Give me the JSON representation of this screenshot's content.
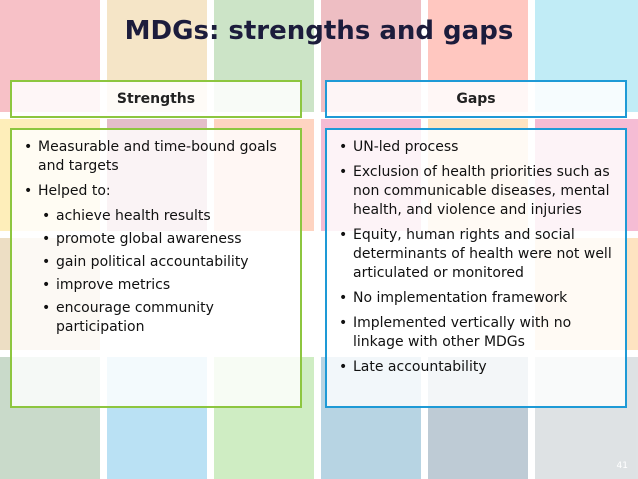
{
  "title": "MDGs: strengths and gaps",
  "columns": [
    {
      "header": "Strengths",
      "items": [
        {
          "text": "Measurable and time-bound goals and targets"
        },
        {
          "text": "Helped to:",
          "subitems": [
            "achieve health results",
            "promote global awareness",
            "gain political accountability",
            "improve metrics",
            "encourage community participation"
          ]
        }
      ]
    },
    {
      "header": "Gaps",
      "items": [
        {
          "text": "UN-led process"
        },
        {
          "text": "Exclusion of health priorities such as non communicable diseases, mental health, and violence and injuries"
        },
        {
          "text": "Equity, human rights and social determinants of health were not well articulated or monitored"
        },
        {
          "text": "No implementation framework"
        },
        {
          "text": "Implemented vertically with no linkage with other MDGs"
        },
        {
          "text": "Late accountability"
        }
      ]
    }
  ],
  "slide_number": "41"
}
